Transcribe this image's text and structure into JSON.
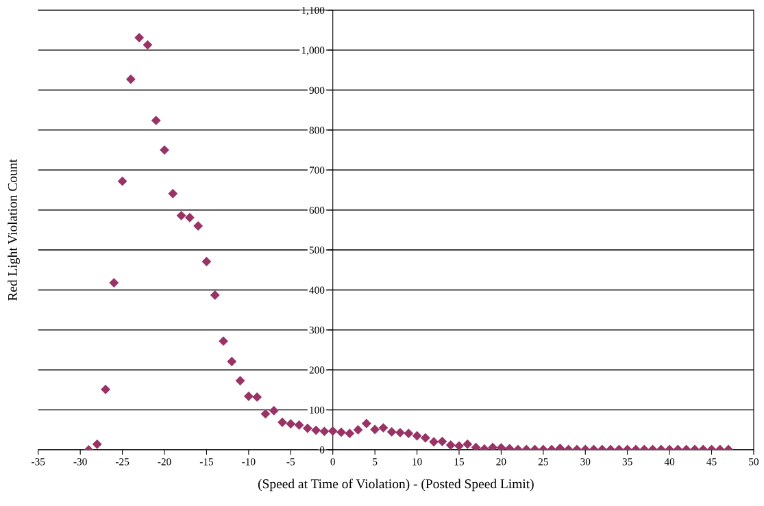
{
  "chart_data": {
    "type": "scatter",
    "xlabel": "(Speed at Time of Violation) - (Posted Speed Limit)",
    "ylabel": "Red Light Violation Count",
    "x": [
      -29,
      -28,
      -27,
      -26,
      -25,
      -24,
      -23,
      -22,
      -21,
      -20,
      -19,
      -18,
      -17,
      -16,
      -15,
      -14,
      -13,
      -12,
      -11,
      -10,
      -9,
      -8,
      -7,
      -6,
      -5,
      -4,
      -3,
      -2,
      -1,
      0,
      1,
      2,
      3,
      4,
      5,
      6,
      7,
      8,
      9,
      10,
      11,
      12,
      13,
      14,
      15,
      16,
      17,
      18,
      19,
      20,
      21,
      22,
      23,
      24,
      25,
      26,
      27,
      28,
      29,
      30,
      31,
      32,
      33,
      34,
      35,
      36,
      37,
      38,
      39,
      40,
      41,
      42,
      43,
      44,
      45,
      46,
      47
    ],
    "series": [
      {
        "color": "#993366",
        "values": [
          0,
          14,
          151,
          418,
          672,
          927,
          1031,
          1013,
          824,
          750,
          641,
          586,
          581,
          560,
          471,
          387,
          272,
          221,
          173,
          134,
          132,
          90,
          98,
          69,
          65,
          62,
          54,
          49,
          46,
          47,
          44,
          41,
          50,
          66,
          51,
          55,
          45,
          43,
          41,
          35,
          30,
          20,
          21,
          12,
          10,
          14,
          6,
          2,
          6,
          5,
          3,
          1,
          1,
          1,
          1,
          1,
          4,
          1,
          1,
          1,
          1,
          1,
          1,
          1,
          1,
          1,
          1,
          1,
          1,
          1,
          1,
          1,
          1,
          1,
          1,
          1,
          1
        ]
      }
    ],
    "marker": "diamond",
    "xlim": [
      -35,
      50
    ],
    "xticks": [
      -35,
      -30,
      -25,
      -20,
      -15,
      -10,
      -5,
      0,
      5,
      10,
      15,
      20,
      25,
      30,
      35,
      40,
      45,
      50
    ],
    "ylim": [
      0,
      1100
    ],
    "yticks": [
      0,
      100,
      200,
      300,
      400,
      500,
      600,
      700,
      800,
      900,
      {
        "value": 1000,
        "label": "1,000"
      },
      {
        "value": 1100,
        "label": "1,100"
      }
    ],
    "grid": "y"
  }
}
